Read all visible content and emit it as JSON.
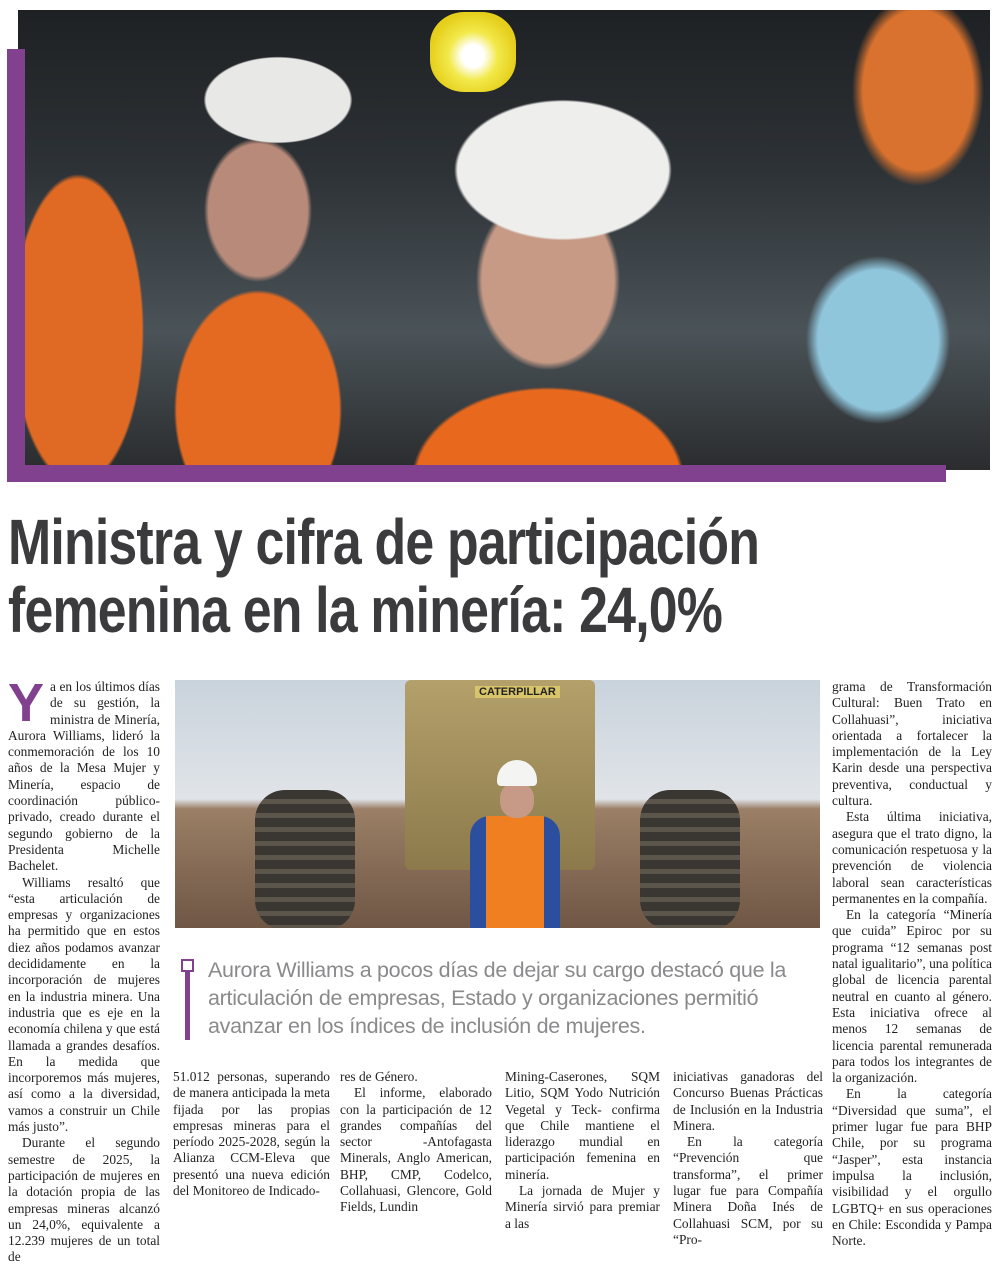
{
  "article": {
    "headline_line1": "Ministra y cifra de participación",
    "headline_line2": "femenina en la minería: 24,0%",
    "dropcap": "Y",
    "pull_quote": "Aurora Williams a pocos días de dejar su cargo destacó que la articulación de empresas, Estado y organizaciones permitió avanzar en los índices de inclusión de mujeres.",
    "photo2_lettering": "CATERPILLAR",
    "accent_color": "#82418f",
    "columns": [
      {
        "paragraphs": [
          "a en los últimos días de su gestión, la ministra de Minería, Aurora Williams, lideró la conmemoración de los 10 años de la Mesa Mujer y Minería, espacio de coordinación público-privado, creado durante el segundo gobierno de la Presidenta Michelle Bachelet.",
          "Williams resaltó que “esta articulación de empresas y organizaciones ha permitido que en estos diez años podamos avanzar decididamente en la incorporación de mujeres en la industria minera. Una industria que es eje en la economía chilena y que está llamada a grandes desafíos. En la medida que incorporemos más mujeres, así como a la diversidad, vamos a construir un Chile más justo”.",
          "Durante el segundo semestre de 2025, la participación de mujeres en la dotación propia de las empresas mineras alcanzó un 24,0%, equivalente a 12.239 mujeres de un total de"
        ]
      },
      {
        "paragraphs": [
          "51.012 personas, superando de manera anticipada la meta fijada por las propias empresas mineras para el período 2025-2028, según la Alianza CCM-Eleva que presentó una nueva edición del Monitoreo de Indicado-"
        ]
      },
      {
        "paragraphs": [
          "res de Género.",
          "El informe, elaborado con la participación de 12 grandes compañías del sector -Antofagasta Minerals, Anglo American, BHP, CMP, Codelco, Collahuasi, Glencore, Gold Fields, Lundin"
        ]
      },
      {
        "paragraphs": [
          "Mining-Caserones, SQM Litio, SQM Yodo Nutrición Vegetal y Teck- confirma que Chile mantiene el liderazgo mundial en participación femenina en minería.",
          "La jornada de Mujer y Minería sirvió para premiar a las"
        ]
      },
      {
        "paragraphs": [
          "iniciativas ganadoras del Concurso Buenas Prácticas de Inclusión en la Industria Minera.",
          "En la categoría “Prevención que transforma”, el primer lugar fue para Compañía Minera Doña Inés de Collahuasi SCM, por su “Pro-"
        ]
      },
      {
        "paragraphs": [
          "grama de Transformación Cultural: Buen Trato en Collahuasi”, iniciativa orientada a fortalecer la implementación de la Ley Karin desde una perspectiva preventiva, conductual y cultura.",
          "Esta última iniciativa, asegura que el trato digno, la comunicación respetuosa y la prevención de violencia laboral sean características permanentes en la compañía.",
          "En la categoría “Minería que cuida” Epiroc por su programa “12 semanas post natal igualitario”, una política global de licencia parental neutral en cuanto al género. Esta iniciativa ofrece al menos 12 semanas de licencia parental remunerada para todos los integrantes de la organización.",
          "En la categoría “Diversidad que suma”, el primer lugar fue para BHP Chile, por su programa “Jasper”, esta instancia impulsa la inclusión, visibilidad y el orgullo LGBTQ+ en sus operaciones en Chile: Escondida y Pampa Norte."
        ]
      }
    ]
  }
}
